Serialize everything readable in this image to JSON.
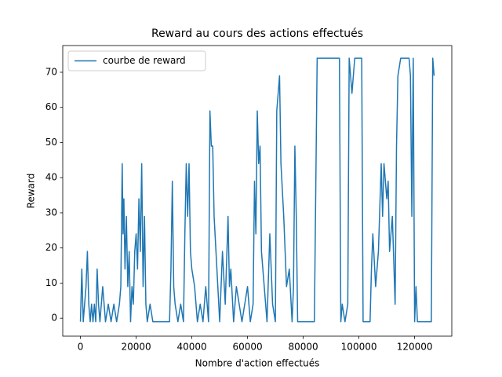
{
  "chart_data": {
    "type": "line",
    "title": "Reward au cours des actions effectués",
    "x_label": "Nombre d'action effectués",
    "y_label": "Reward",
    "x": [
      0,
      500,
      1000,
      1500,
      2000,
      2500,
      3000,
      3500,
      4000,
      4500,
      5000,
      5500,
      6000,
      6500,
      7000,
      8000,
      9000,
      10000,
      11000,
      12000,
      13000,
      14000,
      14500,
      15000,
      15300,
      15600,
      16000,
      16500,
      17000,
      17500,
      18000,
      18500,
      19000,
      19500,
      20000,
      20500,
      21000,
      21500,
      22000,
      22500,
      23000,
      23500,
      24000,
      25000,
      26000,
      27000,
      28000,
      32000,
      32500,
      33000,
      33500,
      34000,
      35000,
      36000,
      37000,
      37500,
      38000,
      38500,
      39000,
      39500,
      40000,
      41000,
      42000,
      43000,
      44000,
      45000,
      46000,
      46500,
      47000,
      47500,
      48000,
      49000,
      50000,
      51000,
      52000,
      53000,
      53500,
      54000,
      55000,
      56000,
      57000,
      58000,
      59000,
      60000,
      61000,
      62000,
      62500,
      63000,
      63500,
      64000,
      64500,
      65000,
      66000,
      67000,
      68000,
      69000,
      70000,
      70500,
      71000,
      71500,
      72000,
      73000,
      74000,
      75000,
      76000,
      76500,
      77000,
      77500,
      78000,
      79000,
      84000,
      85000,
      93000,
      93500,
      94000,
      95000,
      96000,
      96500,
      97500,
      98500,
      99000,
      99500,
      101000,
      101500,
      104000,
      104500,
      105000,
      106000,
      107000,
      108000,
      108500,
      109000,
      110000,
      110500,
      111000,
      112000,
      113000,
      113500,
      114000,
      115000,
      118000,
      118500,
      119000,
      119500,
      120000,
      120500,
      121000,
      126000,
      126500,
      127000
    ],
    "series": [
      {
        "name": "courbe de reward",
        "color": "#1f77b4",
        "values": [
          -1,
          14,
          -1,
          4,
          9,
          19,
          4,
          -1,
          4,
          -1,
          4,
          -1,
          14,
          4,
          -1,
          9,
          -1,
          4,
          -1,
          4,
          -1,
          4,
          9,
          44,
          24,
          34,
          14,
          29,
          9,
          19,
          -1,
          9,
          4,
          19,
          24,
          14,
          34,
          19,
          44,
          9,
          29,
          4,
          -1,
          4,
          -1,
          -1,
          -1,
          -1,
          14,
          39,
          9,
          4,
          -1,
          4,
          -1,
          24,
          44,
          29,
          44,
          19,
          14,
          9,
          -1,
          4,
          -1,
          9,
          -1,
          59,
          49,
          49,
          29,
          14,
          -1,
          19,
          4,
          29,
          9,
          14,
          -1,
          9,
          4,
          -1,
          4,
          9,
          -1,
          4,
          39,
          24,
          59,
          44,
          49,
          19,
          9,
          -1,
          24,
          4,
          -1,
          59,
          64,
          69,
          44,
          29,
          9,
          14,
          -1,
          9,
          49,
          29,
          -1,
          -1,
          -1,
          74,
          74,
          -1,
          4,
          -1,
          4,
          74,
          64,
          74,
          74,
          74,
          74,
          -1,
          -1,
          14,
          24,
          9,
          19,
          44,
          29,
          44,
          34,
          39,
          19,
          29,
          4,
          49,
          69,
          74,
          74,
          69,
          29,
          74,
          -1,
          9,
          -1,
          -1,
          74,
          69
        ]
      }
    ],
    "xlim": [
      -6350,
      133350
    ],
    "ylim": [
      -5.1,
      77.6
    ],
    "xticks": [
      0,
      20000,
      40000,
      60000,
      80000,
      100000,
      120000
    ],
    "yticks": [
      0,
      10,
      20,
      30,
      40,
      50,
      60,
      70
    ],
    "grid": false,
    "legend": "upper-left"
  }
}
